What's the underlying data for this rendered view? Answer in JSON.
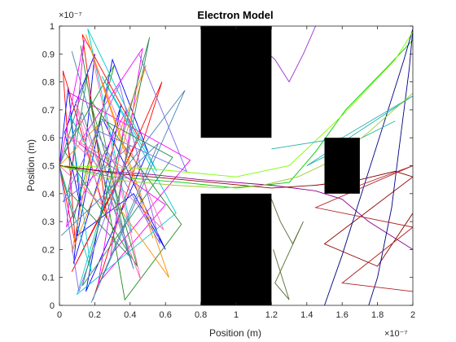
{
  "chart_data": {
    "type": "line",
    "title": "Electron Model",
    "xlabel": "Position (m)",
    "ylabel": "Position (m)",
    "xlim": [
      0,
      2
    ],
    "ylim": [
      0,
      1
    ],
    "x_exponent": "×10⁻⁷",
    "y_exponent": "×10⁻⁷",
    "x_ticks": [
      "0",
      "0.2",
      "0.4",
      "0.6",
      "0.8",
      "1",
      "1.2",
      "1.4",
      "1.6",
      "1.8",
      "2"
    ],
    "y_ticks": [
      "0",
      "0.1",
      "0.2",
      "0.3",
      "0.4",
      "0.5",
      "0.6",
      "0.7",
      "0.8",
      "0.9",
      "1"
    ],
    "grid": false,
    "legend": "none",
    "obstacle_color": "#000000",
    "obstacles": [
      {
        "x": [
          0.8,
          1.2
        ],
        "y": [
          0.6,
          1.0
        ]
      },
      {
        "x": [
          0.8,
          1.2
        ],
        "y": [
          0.0,
          0.4
        ]
      },
      {
        "x": [
          1.5,
          1.7
        ],
        "y": [
          0.4,
          0.6
        ]
      }
    ],
    "series": [
      {
        "color": "#0000ff",
        "x": [
          0,
          0.05,
          0.12,
          0.03,
          0.2,
          0.08,
          0.35,
          0.15,
          0.5,
          0.3,
          0.1,
          0.42,
          0.6,
          0.25
        ],
        "y": [
          0.5,
          0.78,
          0.35,
          0.62,
          0.9,
          0.15,
          0.72,
          0.05,
          0.55,
          0.88,
          0.25,
          0.4,
          0.2,
          0.66
        ]
      },
      {
        "color": "#ff0000",
        "x": [
          0,
          0.09,
          0.02,
          0.27,
          0.13,
          0.45,
          0.07,
          0.33,
          0.58,
          0.19
        ],
        "y": [
          0.5,
          0.22,
          0.84,
          0.31,
          0.97,
          0.6,
          0.12,
          0.44,
          0.8,
          0.02
        ]
      },
      {
        "color": "#00cc00",
        "x": [
          0,
          0.3,
          0.7,
          1.0,
          1.3,
          1.45,
          1.62,
          1.85,
          2.0
        ],
        "y": [
          0.5,
          0.46,
          0.44,
          0.42,
          0.44,
          0.55,
          0.7,
          0.85,
          0.95
        ]
      },
      {
        "color": "#ff00ff",
        "x": [
          0,
          0.14,
          0.04,
          0.38,
          0.22,
          0.6,
          0.11,
          0.47,
          0.29,
          0.74,
          0.06
        ],
        "y": [
          0.5,
          0.95,
          0.28,
          0.7,
          0.08,
          0.36,
          0.58,
          0.92,
          0.18,
          0.52,
          0.76
        ]
      },
      {
        "color": "#00cccc",
        "x": [
          0,
          0.18,
          0.06,
          0.41,
          0.16,
          0.55,
          0.24,
          0.66,
          0.1,
          0.36
        ],
        "y": [
          0.5,
          0.12,
          0.68,
          0.26,
          0.99,
          0.48,
          0.82,
          0.33,
          0.04,
          0.6
        ]
      },
      {
        "color": "#8b008b",
        "x": [
          0,
          0.26,
          0.5,
          0.8,
          1.2,
          1.45,
          1.6,
          1.75,
          2.0
        ],
        "y": [
          0.5,
          0.48,
          0.47,
          0.45,
          0.43,
          0.41,
          0.38,
          0.3,
          0.2
        ]
      },
      {
        "color": "#228b22",
        "x": [
          0,
          0.08,
          0.31,
          0.03,
          0.44,
          0.17,
          0.69,
          0.37,
          0.12
        ],
        "y": [
          0.5,
          0.31,
          0.86,
          0.55,
          0.14,
          0.74,
          0.29,
          0.02,
          0.93
        ]
      },
      {
        "color": "#ff8c00",
        "x": [
          0,
          0.21,
          0.07,
          0.49,
          0.28,
          0.62,
          0.15,
          0.53
        ],
        "y": [
          0.5,
          0.64,
          0.19,
          0.86,
          0.4,
          0.1,
          0.97,
          0.24
        ]
      },
      {
        "color": "#7b68ee",
        "x": [
          0,
          0.11,
          0.4,
          0.02,
          0.34,
          0.57,
          0.2,
          0.72,
          0.45
        ],
        "y": [
          0.5,
          0.05,
          0.57,
          0.37,
          0.79,
          0.22,
          0.63,
          0.48,
          0.9
        ]
      },
      {
        "color": "#8b0000",
        "x": [
          0,
          0.35,
          0.7,
          1.2,
          1.45,
          1.7,
          1.9,
          2.0,
          1.5,
          1.8,
          2.0
        ],
        "y": [
          0.5,
          0.47,
          0.45,
          0.42,
          0.43,
          0.45,
          0.48,
          0.46,
          0.22,
          0.14,
          0.33
        ]
      },
      {
        "color": "#2e8b57",
        "x": [
          0,
          0.16,
          0.05,
          0.39,
          0.23,
          0.64,
          0.13,
          0.51,
          0.32
        ],
        "y": [
          0.5,
          0.83,
          0.41,
          0.18,
          0.67,
          0.53,
          0.07,
          0.96,
          0.34
        ]
      },
      {
        "color": "#ff69b4",
        "x": [
          0,
          0.24,
          0.09,
          0.46,
          0.19,
          0.59,
          0.04,
          0.43
        ],
        "y": [
          0.5,
          0.36,
          0.73,
          0.09,
          0.88,
          0.27,
          0.61,
          0.47
        ]
      },
      {
        "color": "#000080",
        "x": [
          1.75,
          1.8,
          1.88,
          1.92,
          1.98,
          2.0,
          1.95,
          1.85,
          1.72,
          1.6,
          1.5
        ],
        "y": [
          0.0,
          0.1,
          0.35,
          0.55,
          0.85,
          0.99,
          0.88,
          0.68,
          0.42,
          0.18,
          0.0
        ]
      },
      {
        "color": "#7cfc00",
        "x": [
          0,
          0.5,
          1.0,
          1.3,
          1.6,
          1.9,
          2.0
        ],
        "y": [
          0.5,
          0.49,
          0.46,
          0.5,
          0.68,
          0.88,
          0.98
        ]
      },
      {
        "color": "#4682b4",
        "x": [
          0,
          0.13,
          0.42,
          0.07,
          0.29,
          0.71,
          0.18,
          0.56,
          0.01
        ],
        "y": [
          0.5,
          0.69,
          0.13,
          0.91,
          0.42,
          0.77,
          0.01,
          0.58,
          0.25
        ]
      },
      {
        "color": "#556b2f",
        "x": [
          1.2,
          1.25,
          1.32,
          1.38,
          1.22,
          1.3,
          1.21
        ],
        "y": [
          0.38,
          0.3,
          0.22,
          0.3,
          0.08,
          0.02,
          0.2
        ]
      },
      {
        "color": "#b22222",
        "x": [
          1.7,
          2.0,
          1.45,
          2.0,
          1.6,
          2.0
        ],
        "y": [
          0.43,
          0.5,
          0.35,
          0.28,
          0.08,
          0.05
        ]
      },
      {
        "color": "#20b2aa",
        "x": [
          1.2,
          1.6,
          2.0,
          1.4,
          1.9
        ],
        "y": [
          0.56,
          0.6,
          0.75,
          0.5,
          0.66
        ]
      },
      {
        "color": "#9acd32",
        "x": [
          0,
          0.3,
          0.65,
          0.92,
          1.15,
          1.35,
          1.55,
          1.75,
          2.0
        ],
        "y": [
          0.5,
          0.45,
          0.43,
          0.42,
          0.43,
          0.46,
          0.52,
          0.62,
          0.76
        ]
      },
      {
        "color": "#9932cc",
        "x": [
          0.9,
          1.0,
          1.1,
          1.22,
          1.3,
          1.38,
          1.45
        ],
        "y": [
          0.63,
          0.75,
          0.95,
          0.88,
          0.8,
          0.9,
          1.0
        ]
      }
    ]
  }
}
